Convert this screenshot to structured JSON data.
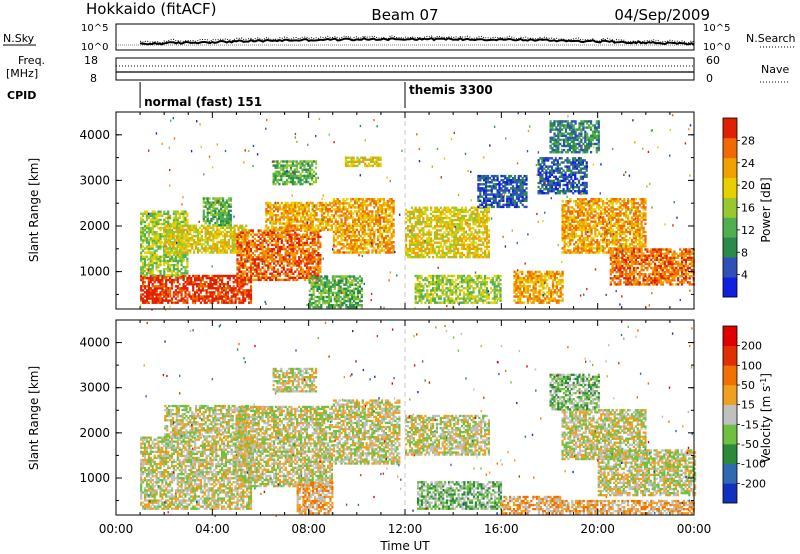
{
  "header": {
    "station": "Hokkaido (fitACF)",
    "beam": "Beam 07",
    "date": "04/Sep/2009"
  },
  "strips": {
    "nsky_label": "N.Sky",
    "nsearch_label": "N.Search",
    "noise_ticks": [
      "10^5",
      "10^0"
    ],
    "freq_label_1": "Freq.",
    "freq_label_2": "[MHz]",
    "freq_ticks": [
      "18",
      "8"
    ],
    "nave_label": "Nave",
    "nave_ticks": [
      "60",
      "0"
    ],
    "cpid_label": "CPID",
    "cpid_segments": [
      {
        "name": "normal (fast) 151",
        "start_hour": 1.0
      },
      {
        "name": "themis 3300",
        "start_hour": 12.0
      }
    ]
  },
  "x_axis": {
    "label": "Time UT",
    "range_hours": [
      0,
      24
    ],
    "ticks": [
      "00:00",
      "04:00",
      "08:00",
      "12:00",
      "16:00",
      "20:00",
      "00:00"
    ]
  },
  "chart_data": [
    {
      "type": "heatmap",
      "name": "power",
      "ylabel": "Slant Range [km]",
      "ylim": [
        180,
        4500
      ],
      "yticks": [
        "1000",
        "2000",
        "3000",
        "4000"
      ],
      "colorbar_label": "Power [dB]",
      "colorbar_ticks": [
        "28",
        "24",
        "20",
        "16",
        "12",
        "8",
        "4"
      ],
      "colors": [
        "#1020e0",
        "#3050b8",
        "#2a8a4a",
        "#50b050",
        "#98c830",
        "#e8d000",
        "#f0a000",
        "#f06a00",
        "#e02000"
      ],
      "regions": [
        {
          "t": [
            1.0,
            5.6
          ],
          "r": [
            300,
            900
          ],
          "level": 8
        },
        {
          "t": [
            1.0,
            3.0
          ],
          "r": [
            900,
            2300
          ],
          "level": 4
        },
        {
          "t": [
            2.0,
            5.5
          ],
          "r": [
            1400,
            2000
          ],
          "level": 5
        },
        {
          "t": [
            3.6,
            4.8
          ],
          "r": [
            2000,
            2600
          ],
          "level": 3
        },
        {
          "t": [
            5.0,
            8.5
          ],
          "r": [
            800,
            1900
          ],
          "level": 7
        },
        {
          "t": [
            6.2,
            9.0
          ],
          "r": [
            1900,
            2500
          ],
          "level": 6
        },
        {
          "t": [
            6.5,
            8.3
          ],
          "r": [
            2900,
            3400
          ],
          "level": 3
        },
        {
          "t": [
            9.0,
            11.5
          ],
          "r": [
            1400,
            2600
          ],
          "level": 6
        },
        {
          "t": [
            9.5,
            11.0
          ],
          "r": [
            3300,
            3500
          ],
          "level": 5
        },
        {
          "t": [
            8.0,
            10.2
          ],
          "r": [
            200,
            900
          ],
          "level": 3
        },
        {
          "t": [
            12.0,
            15.5
          ],
          "r": [
            1300,
            2400
          ],
          "level": 5
        },
        {
          "t": [
            12.4,
            16.0
          ],
          "r": [
            300,
            900
          ],
          "level": 4
        },
        {
          "t": [
            16.5,
            18.5
          ],
          "r": [
            300,
            1000
          ],
          "level": 6
        },
        {
          "t": [
            15.0,
            17.0
          ],
          "r": [
            2400,
            3100
          ],
          "level": 1
        },
        {
          "t": [
            18.5,
            22.0
          ],
          "r": [
            1400,
            2600
          ],
          "level": 6
        },
        {
          "t": [
            20.5,
            24.0
          ],
          "r": [
            700,
            1500
          ],
          "level": 7
        },
        {
          "t": [
            17.5,
            19.5
          ],
          "r": [
            2700,
            3500
          ],
          "level": 1
        },
        {
          "t": [
            18.0,
            20.0
          ],
          "r": [
            3600,
            4300
          ],
          "level": 2
        }
      ]
    },
    {
      "type": "heatmap",
      "name": "velocity",
      "ylabel": "Slant Range [km]",
      "ylim": [
        180,
        4500
      ],
      "yticks": [
        "1000",
        "2000",
        "3000",
        "4000"
      ],
      "colorbar_label": "Velocity [m s^-1]",
      "colorbar_ticks": [
        "200",
        "100",
        "50",
        "15",
        "-15",
        "-50",
        "-100",
        "-200"
      ],
      "colors": [
        "#1030c0",
        "#2f6ab0",
        "#2a8a3a",
        "#70c040",
        "#c0c0c0",
        "#f0a020",
        "#f07000",
        "#e03000",
        "#e00000"
      ],
      "regions": [
        {
          "t": [
            1.0,
            5.6
          ],
          "r": [
            300,
            1900
          ],
          "level": 4
        },
        {
          "t": [
            2.0,
            5.5
          ],
          "r": [
            1900,
            2600
          ],
          "level": 4
        },
        {
          "t": [
            5.0,
            9.0
          ],
          "r": [
            800,
            2600
          ],
          "level": 4
        },
        {
          "t": [
            6.5,
            8.3
          ],
          "r": [
            2900,
            3400
          ],
          "level": 4
        },
        {
          "t": [
            9.0,
            11.8
          ],
          "r": [
            1300,
            2700
          ],
          "level": 4
        },
        {
          "t": [
            7.5,
            9.0
          ],
          "r": [
            200,
            900
          ],
          "level": 5
        },
        {
          "t": [
            12.0,
            15.5
          ],
          "r": [
            1500,
            2400
          ],
          "level": 4
        },
        {
          "t": [
            12.5,
            16.0
          ],
          "r": [
            300,
            900
          ],
          "level": 3
        },
        {
          "t": [
            16.0,
            18.5
          ],
          "r": [
            200,
            600
          ],
          "level": 5
        },
        {
          "t": [
            18.5,
            24.0
          ],
          "r": [
            200,
            500
          ],
          "level": 5
        },
        {
          "t": [
            18.5,
            22.0
          ],
          "r": [
            1400,
            2500
          ],
          "level": 4
        },
        {
          "t": [
            20.0,
            24.0
          ],
          "r": [
            600,
            1600
          ],
          "level": 4
        },
        {
          "t": [
            18.0,
            20.0
          ],
          "r": [
            2500,
            3300
          ],
          "level": 3
        }
      ]
    }
  ]
}
